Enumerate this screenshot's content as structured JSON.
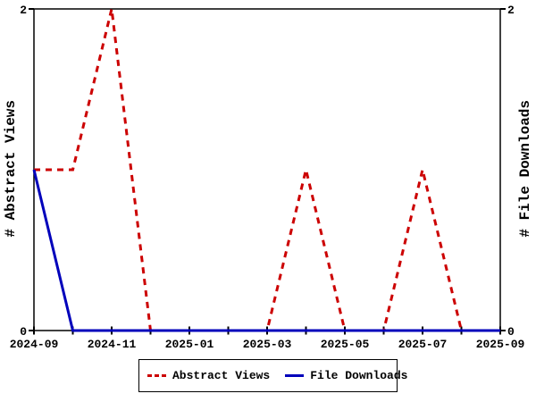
{
  "figure": {
    "background": "#ffffff",
    "border_color": "#000000",
    "text_color": "#000000"
  },
  "axes": {
    "left_label": "# Abstract Views",
    "right_label": "# File Downloads",
    "y_tick_labels": [
      "0",
      "2"
    ],
    "x_tick_labels": [
      "2024-09",
      "2024-11",
      "2025-01",
      "2025-03",
      "2025-05",
      "2025-07",
      "2025-09"
    ]
  },
  "legend": {
    "items": [
      {
        "label": "Abstract Views",
        "color": "#cc0000",
        "style": "dashed"
      },
      {
        "label": "File Downloads",
        "color": "#0000bb",
        "style": "solid"
      }
    ]
  },
  "chart_data": {
    "type": "line",
    "title": "",
    "x": [
      "2024-09",
      "2024-10",
      "2024-11",
      "2024-12",
      "2025-01",
      "2025-02",
      "2025-03",
      "2025-04",
      "2025-05",
      "2025-06",
      "2025-07",
      "2025-08",
      "2025-09"
    ],
    "xtick_labels": [
      "2024-09",
      "2024-11",
      "2025-01",
      "2025-03",
      "2025-05",
      "2025-07",
      "2025-09"
    ],
    "series": [
      {
        "name": "Abstract Views",
        "color": "#cc0000",
        "dash": true,
        "values": [
          1,
          1,
          2,
          0,
          0,
          0,
          0,
          1,
          0,
          0,
          1,
          0,
          0
        ]
      },
      {
        "name": "File Downloads",
        "color": "#0000bb",
        "dash": false,
        "values": [
          1,
          0,
          0,
          0,
          0,
          0,
          0,
          0,
          0,
          0,
          0,
          0,
          0
        ]
      }
    ],
    "ylim": [
      0,
      2
    ],
    "yticks": [
      0,
      2
    ],
    "ylabel_left": "# Abstract Views",
    "ylabel_right": "# File Downloads",
    "grid": false,
    "plot_border": "full-box",
    "legend_position": "bottom-center"
  }
}
